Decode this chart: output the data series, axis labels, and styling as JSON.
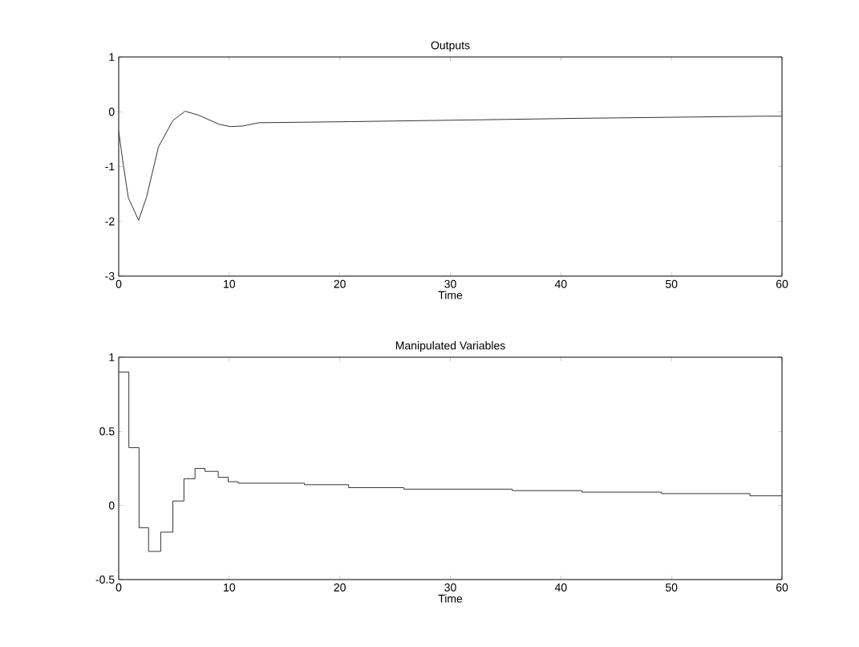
{
  "chart_data": [
    {
      "type": "line",
      "title": "Outputs",
      "xlabel": "Time",
      "x": [
        0,
        0.36,
        0.87,
        1.8,
        2.5,
        3.6,
        4.9,
        6,
        7.2,
        9.1,
        10.1,
        11.2,
        12.7,
        21,
        31.5,
        41.5,
        58.5,
        60
      ],
      "series": [
        {
          "color": "#333333",
          "values": [
            -0.35,
            -0.89,
            -1.57,
            -1.98,
            -1.57,
            -0.64,
            -0.16,
            0.01,
            -0.06,
            -0.23,
            -0.27,
            -0.26,
            -0.2,
            -0.18,
            -0.15,
            -0.12,
            -0.08,
            -0.08
          ]
        }
      ],
      "xlim": [
        0,
        60
      ],
      "ylim": [
        -3,
        1
      ],
      "xticks": [
        0,
        10,
        20,
        30,
        40,
        50,
        60
      ],
      "yticks": [
        -3,
        -2,
        -1,
        0,
        1
      ],
      "grid": false
    },
    {
      "type": "step",
      "title": "Manipulated Variables",
      "xlabel": "Time",
      "x": [
        0,
        0.92,
        1.84,
        2.7,
        3.8,
        4.9,
        5.9,
        6.9,
        7.8,
        9.0,
        9.9,
        10.8,
        16.8,
        20.8,
        25.8,
        35.6,
        41.9,
        49.1,
        57.1,
        60
      ],
      "series": [
        {
          "color": "#333333",
          "values": [
            0.9,
            0.39,
            -0.15,
            -0.31,
            -0.18,
            0.03,
            0.18,
            0.25,
            0.23,
            0.19,
            0.16,
            0.15,
            0.14,
            0.12,
            0.11,
            0.1,
            0.09,
            0.08,
            0.065,
            0.065
          ]
        }
      ],
      "xlim": [
        0,
        60
      ],
      "ylim": [
        -0.5,
        1
      ],
      "xticks": [
        0,
        10,
        20,
        30,
        40,
        50,
        60
      ],
      "yticks": [
        -0.5,
        0,
        0.5,
        1
      ],
      "grid": false
    }
  ]
}
